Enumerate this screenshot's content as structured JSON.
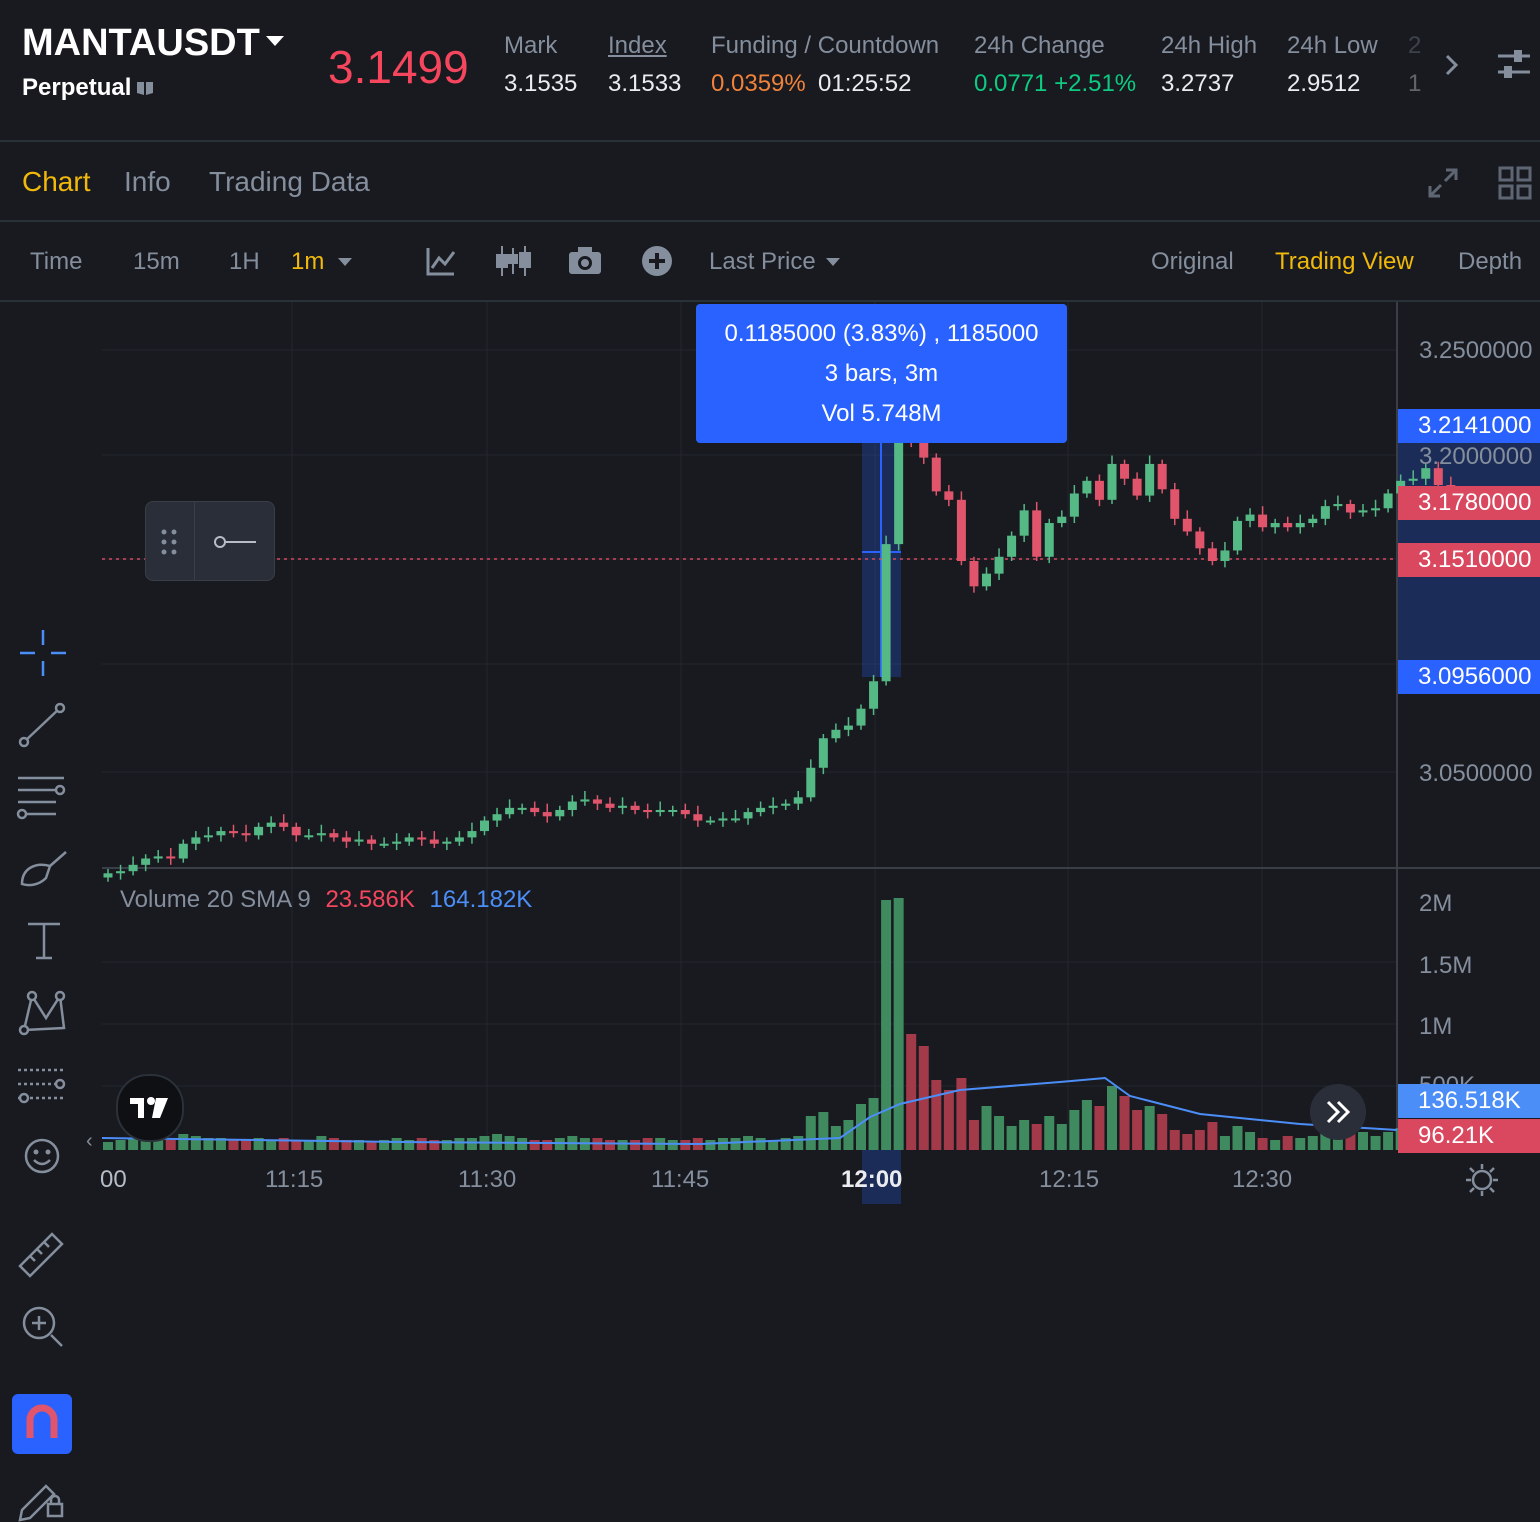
{
  "header": {
    "symbol": "MANTAUSDT",
    "contract_type": "Perpetual",
    "last_price": "3.1499",
    "stats": [
      {
        "label": "Mark",
        "value": "3.1535"
      },
      {
        "label": "Index",
        "value": "3.1533"
      },
      {
        "label": "Funding / Countdown",
        "value": "0.0359%",
        "value2": "01:25:52"
      },
      {
        "label": "24h Change",
        "value": "0.0771 +2.51%"
      },
      {
        "label": "24h High",
        "value": "3.2737"
      },
      {
        "label": "24h Low",
        "value": "2.9512"
      },
      {
        "label": "2",
        "value": "1"
      }
    ]
  },
  "tabs": [
    "Chart",
    "Info",
    "Trading Data"
  ],
  "toolbar": {
    "intervals": [
      "Time",
      "15m",
      "1H",
      "1m"
    ],
    "price_type": "Last Price",
    "views": [
      "Original",
      "Trading View",
      "Depth"
    ]
  },
  "measure_tooltip": {
    "line1": "0.1185000 (3.83%) , 1185000",
    "line2": "3 bars, 3m",
    "line3": "Vol 5.748M"
  },
  "price_axis": {
    "ticks": [
      "3.2500000",
      "3.2000000",
      "3.0500000"
    ],
    "labels": [
      {
        "text": "3.2141000",
        "color": "#2962ff"
      },
      {
        "text": "3.1780000",
        "color": "#d9485f"
      },
      {
        "text": "3.1510000",
        "color": "#d9485f"
      },
      {
        "text": "3.0956000",
        "color": "#2962ff"
      }
    ]
  },
  "volume": {
    "legend_name": "Volume 20 SMA 9",
    "legend_val1": "23.586K",
    "legend_val2": "164.182K",
    "ticks": [
      "2M",
      "1.5M",
      "1M",
      "500K"
    ],
    "labels": [
      {
        "text": "136.518K",
        "color": "#4c8ef7"
      },
      {
        "text": "96.21K",
        "color": "#d9485f"
      }
    ]
  },
  "time_axis": [
    "00",
    "11:15",
    "11:30",
    "11:45",
    "12:00",
    "12:15",
    "12:30"
  ],
  "colors": {
    "up": "#55b986",
    "down": "#e0556b",
    "accent": "#f0b90b",
    "down_text": "#f6465d",
    "up_text": "#0ecb81",
    "funding": "#f0823a"
  }
}
